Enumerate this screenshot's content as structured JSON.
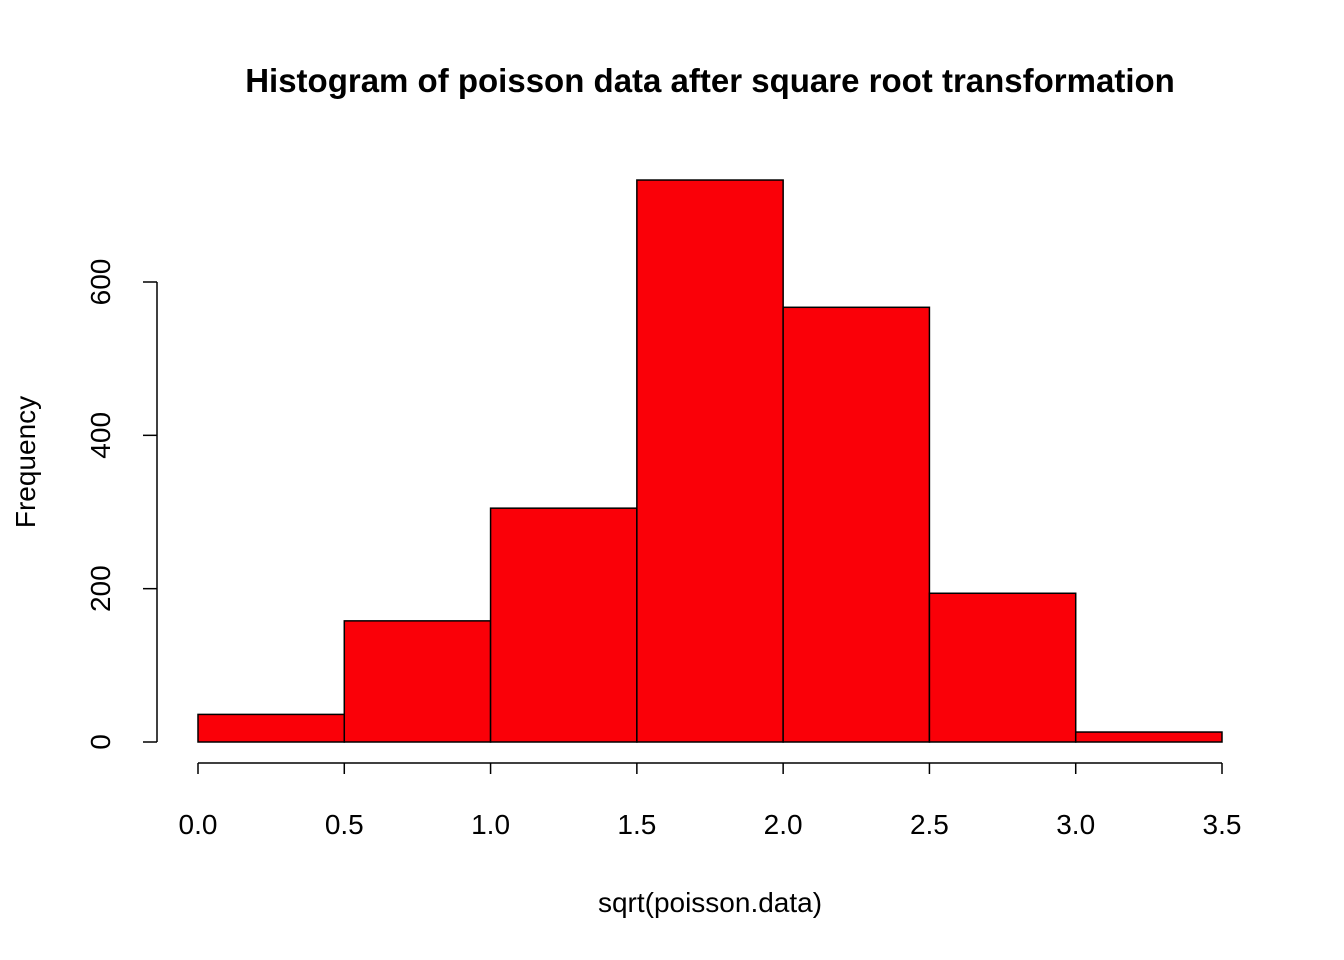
{
  "chart_data": {
    "type": "bar",
    "title": "Histogram of poisson data after square root transformation",
    "xlabel": "sqrt(poisson.data)",
    "ylabel": "Frequency",
    "bins": [
      [
        0.0,
        0.5
      ],
      [
        0.5,
        1.0
      ],
      [
        1.0,
        1.5
      ],
      [
        1.5,
        2.0
      ],
      [
        2.0,
        2.5
      ],
      [
        2.5,
        3.0
      ],
      [
        3.0,
        3.5
      ]
    ],
    "values": [
      36,
      158,
      305,
      733,
      567,
      194,
      13
    ],
    "xlim": [
      0,
      3.5
    ],
    "ylim": [
      0,
      733
    ],
    "xticks": [
      "0.0",
      "0.5",
      "1.0",
      "1.5",
      "2.0",
      "2.5",
      "3.0",
      "3.5"
    ],
    "yticks": [
      "0",
      "200",
      "400",
      "600"
    ],
    "bar_color": "#fa0008",
    "grid": false
  }
}
